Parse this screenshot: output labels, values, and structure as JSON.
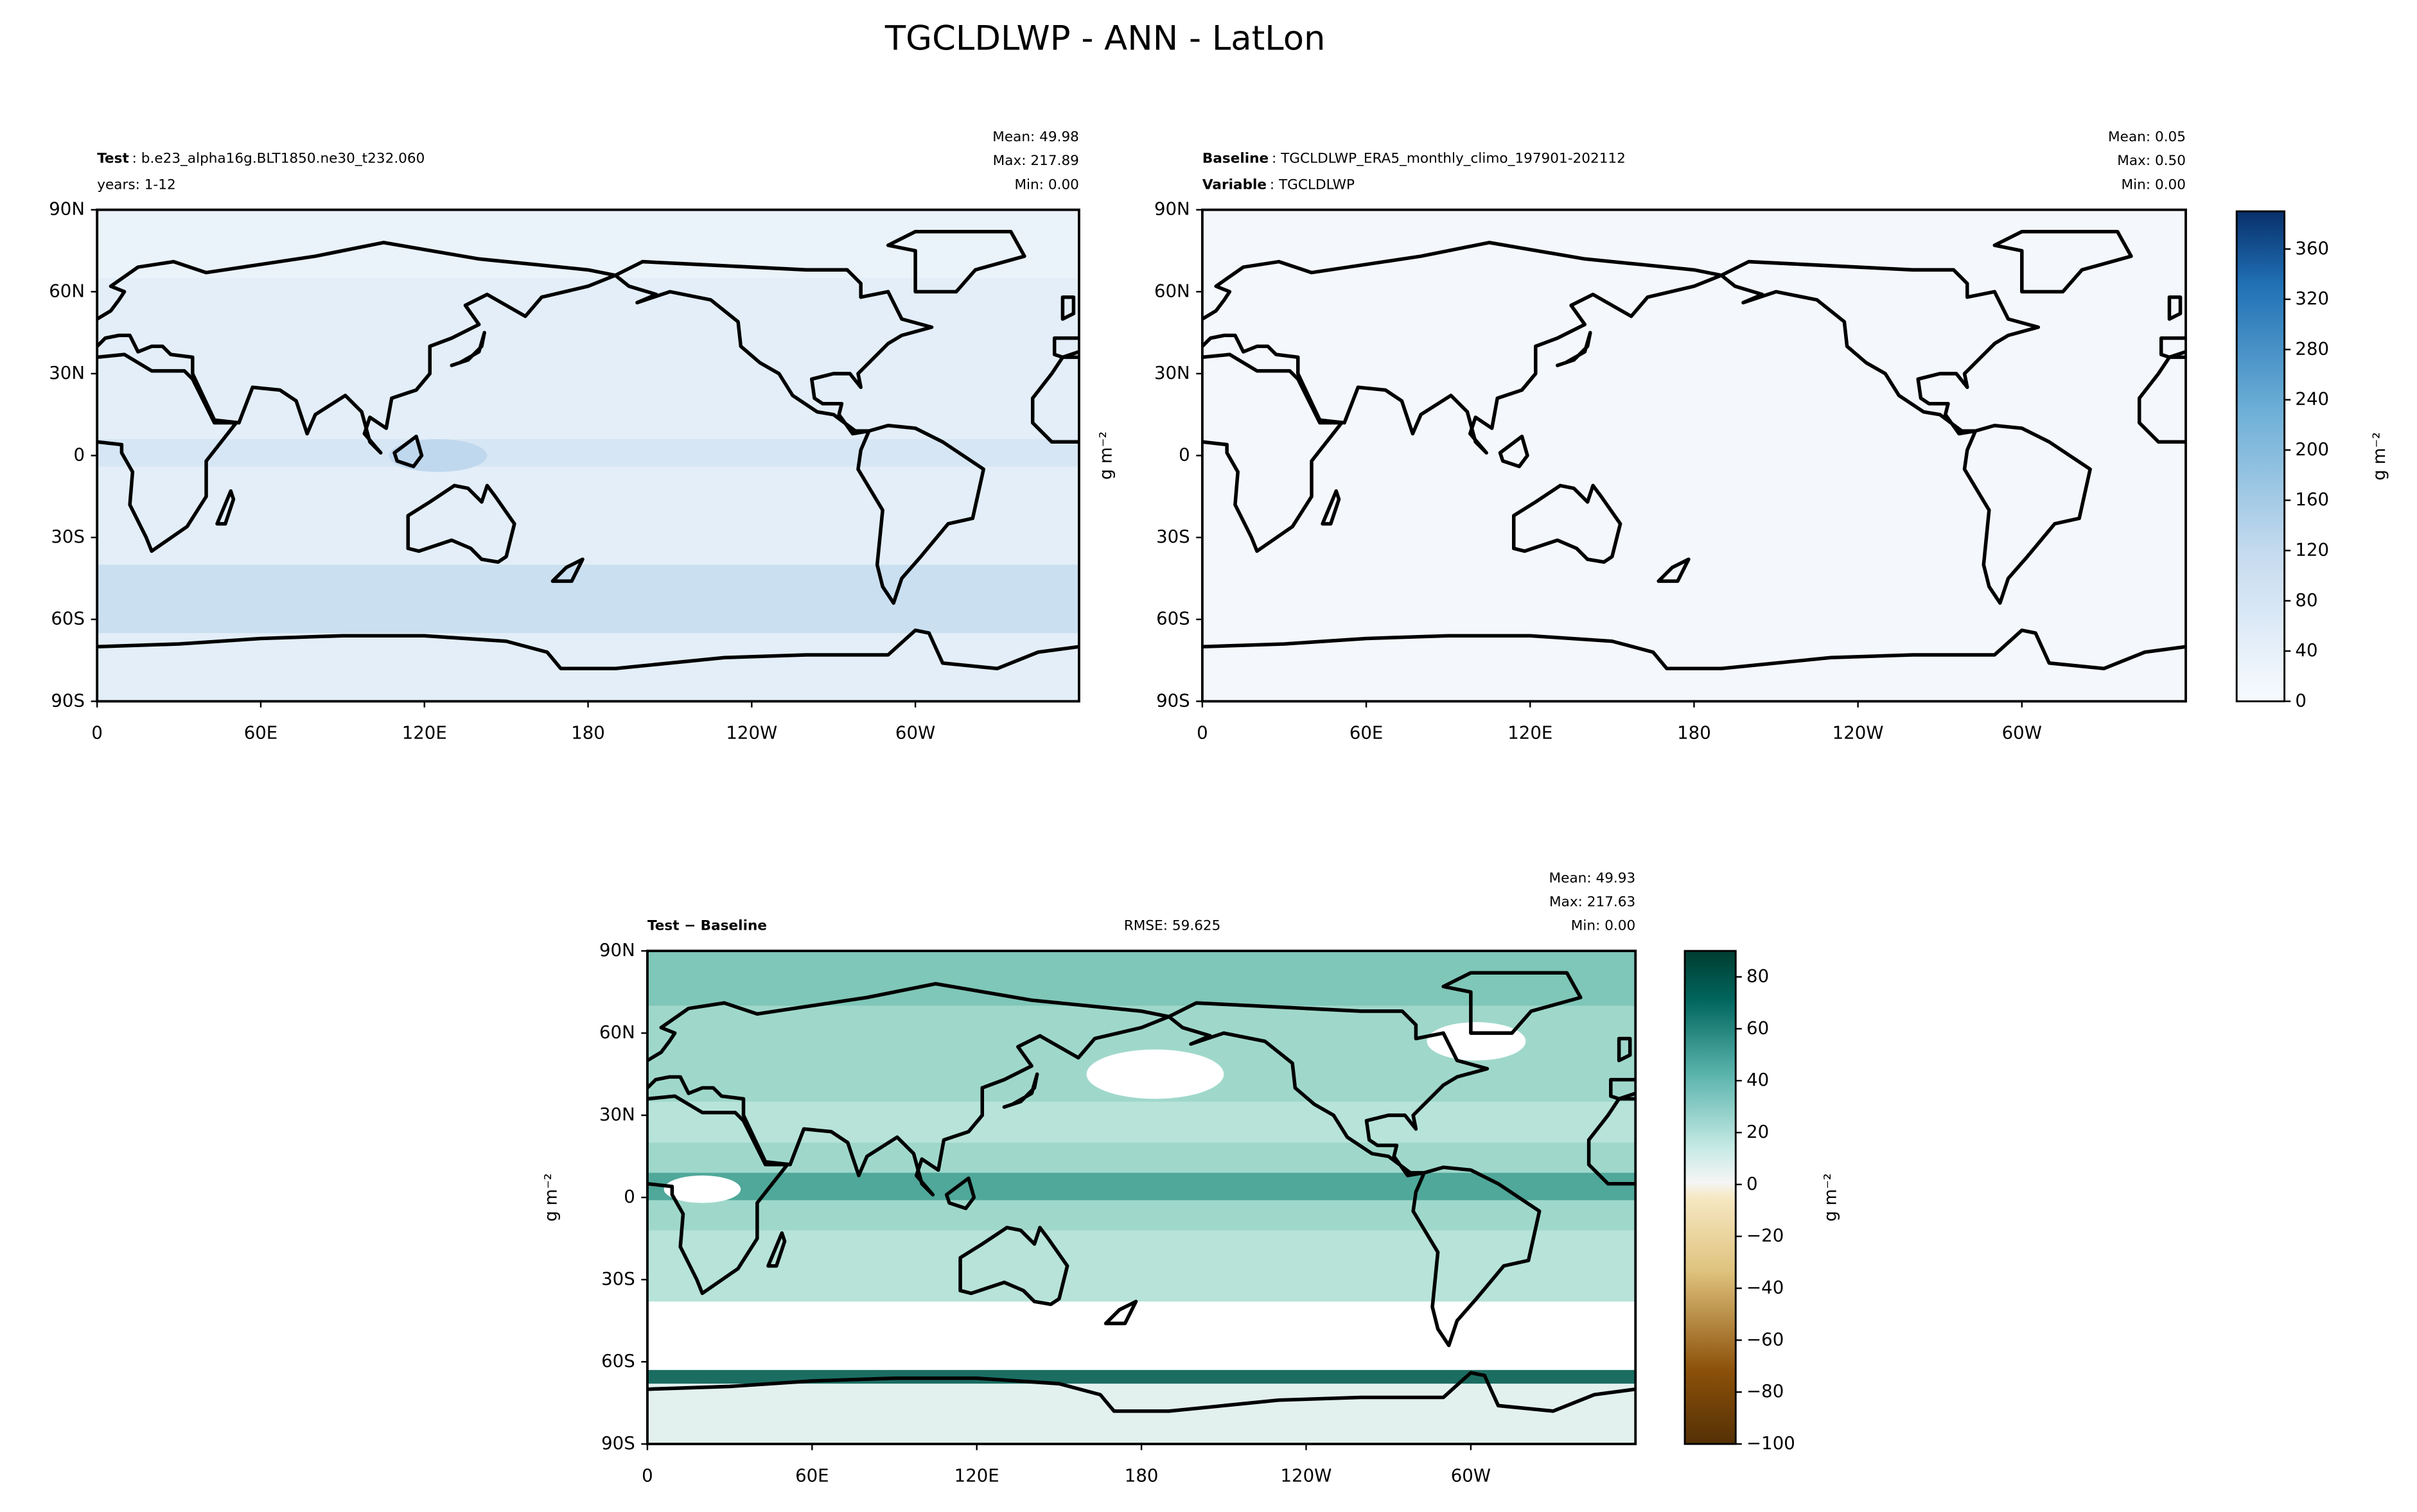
{
  "title": "TGCLDLWP - ANN - LatLon",
  "chart_data": [
    {
      "type": "map",
      "label_bold": "Test",
      "label": ": b.e23_alpha16g.BLT1850.ne30_t232.060",
      "label_2": "years: 1-12",
      "stats": [
        "Mean: 49.98",
        "Max: 217.89",
        "Min:  0.00"
      ],
      "xlim": [
        0,
        360
      ],
      "xticks": [
        0,
        {
          "value": 60,
          "label": "60E"
        },
        {
          "value": 120,
          "label": "120E"
        },
        180,
        {
          "value": 240,
          "label": "120W"
        },
        {
          "value": 300,
          "label": "60W"
        }
      ],
      "ylim": [
        -90,
        90
      ],
      "yticks": [
        {
          "value": 90,
          "label": "90N"
        },
        {
          "value": 60,
          "label": "60N"
        },
        {
          "value": 30,
          "label": "30N"
        },
        0,
        {
          "value": -30,
          "label": "30S"
        },
        {
          "value": -60,
          "label": "60S"
        },
        {
          "value": -90,
          "label": "90S"
        }
      ]
    },
    {
      "type": "map",
      "label_bold": "Baseline",
      "label": ": TGCLDLWP_ERA5_monthly_climo_197901-202112",
      "label_2_bold": "Variable",
      "label_2": ": TGCLDLWP",
      "stats": [
        "Mean:  0.05",
        "Max:  0.50",
        "Min:  0.00"
      ],
      "ylabel": "g m⁻²",
      "xlim": [
        0,
        360
      ],
      "xticks": [
        0,
        {
          "value": 60,
          "label": "60E"
        },
        {
          "value": 120,
          "label": "120E"
        },
        180,
        {
          "value": 240,
          "label": "120W"
        },
        {
          "value": 300,
          "label": "60W"
        }
      ],
      "ylim": [
        -90,
        90
      ],
      "yticks": [
        {
          "value": 90,
          "label": "90N"
        },
        {
          "value": 60,
          "label": "60N"
        },
        {
          "value": 30,
          "label": "30N"
        },
        0,
        {
          "value": -30,
          "label": "30S"
        },
        {
          "value": -60,
          "label": "60S"
        },
        {
          "value": -90,
          "label": "90S"
        }
      ]
    },
    {
      "type": "colorbar",
      "ylim": [
        0,
        390
      ],
      "yticks": [
        0,
        40,
        80,
        120,
        160,
        200,
        240,
        280,
        320,
        360
      ],
      "ylabel": "g m⁻²"
    },
    {
      "type": "map",
      "label_bold": "Test − Baseline",
      "center_label": "RMSE: 59.625",
      "stats": [
        "Mean: 49.93",
        "Max: 217.63",
        "Min:  0.00"
      ],
      "ylabel": "g m⁻²",
      "xlim": [
        0,
        360
      ],
      "xticks": [
        0,
        {
          "value": 60,
          "label": "60E"
        },
        {
          "value": 120,
          "label": "120E"
        },
        180,
        {
          "value": 240,
          "label": "120W"
        },
        {
          "value": 300,
          "label": "60W"
        }
      ],
      "ylim": [
        -90,
        90
      ],
      "yticks": [
        {
          "value": 90,
          "label": "90N"
        },
        {
          "value": 60,
          "label": "60N"
        },
        {
          "value": 30,
          "label": "30N"
        },
        0,
        {
          "value": -30,
          "label": "30S"
        },
        {
          "value": -60,
          "label": "60S"
        },
        {
          "value": -90,
          "label": "90S"
        }
      ]
    },
    {
      "type": "colorbar",
      "ylim": [
        -100,
        90
      ],
      "yticks": [
        {
          "value": -100,
          "label": "−100"
        },
        {
          "value": -80,
          "label": "−80"
        },
        {
          "value": -60,
          "label": "−60"
        },
        {
          "value": -40,
          "label": "−40"
        },
        {
          "value": -20,
          "label": "−20"
        },
        0,
        20,
        40,
        60,
        80
      ],
      "ylabel": "g m⁻²"
    }
  ]
}
